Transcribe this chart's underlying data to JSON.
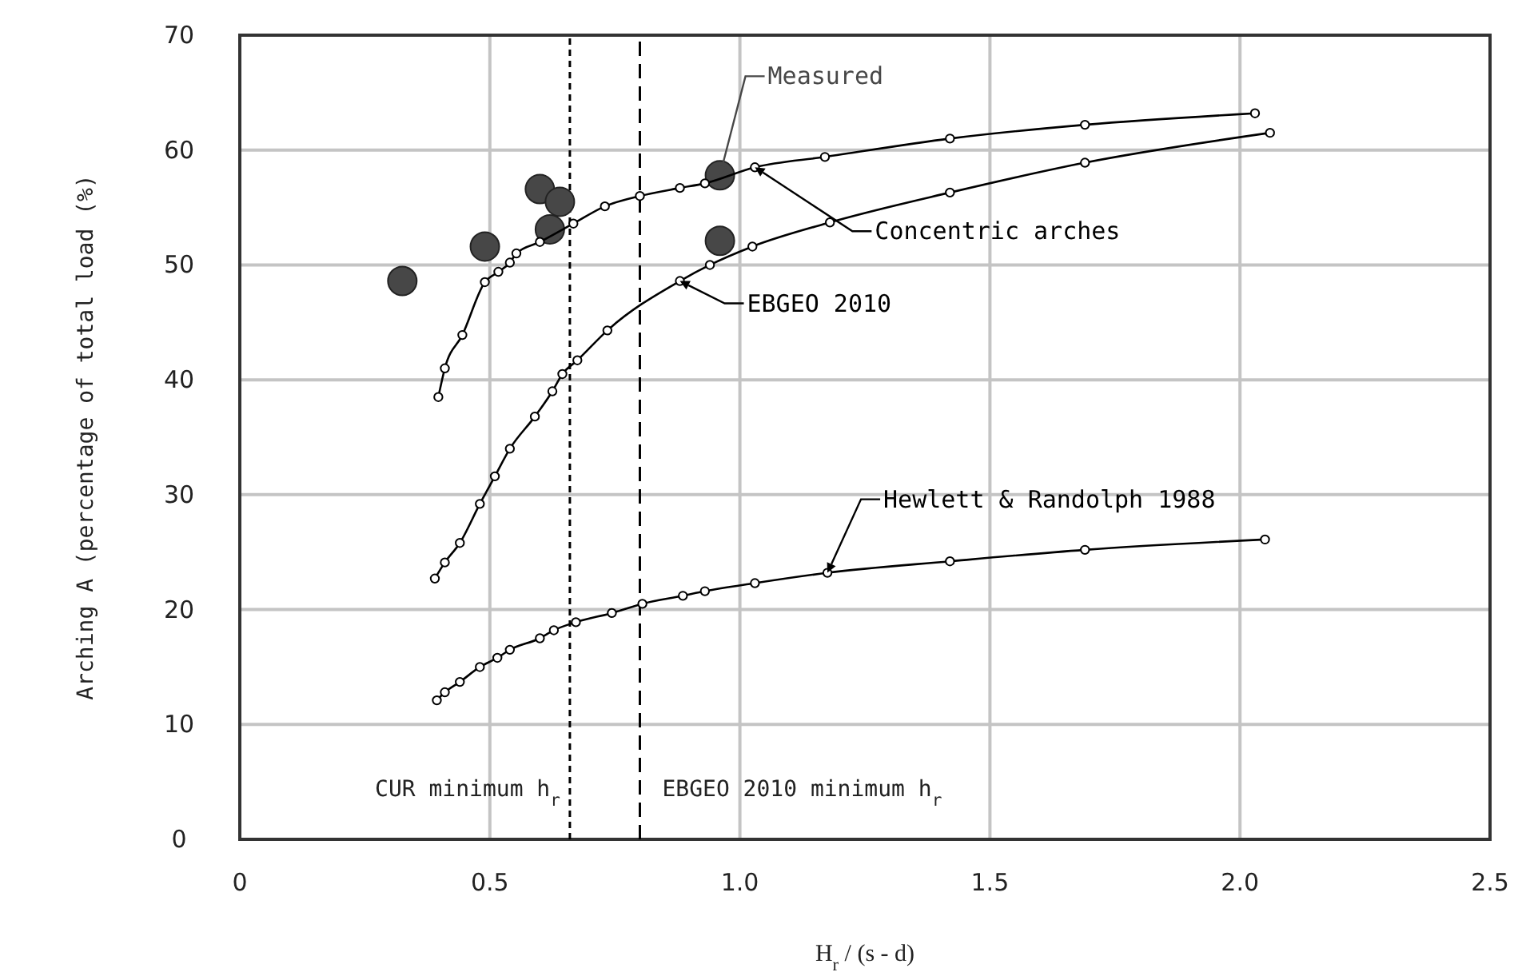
{
  "chart_data": {
    "type": "line",
    "xlabel": "H$_{r}$ / (s - d)",
    "ylabel": "Arching A (percentage of total load (%)",
    "xlim": [
      0,
      2.5
    ],
    "xticks": [
      0,
      0.5,
      {
        "value": 1,
        "label": "1.0"
      },
      1.5,
      {
        "value": 2,
        "label": "2.0"
      },
      2.5
    ],
    "ylim": [
      0,
      70
    ],
    "yticks": [
      0,
      10,
      20,
      30,
      40,
      50,
      60,
      70
    ],
    "grid": true,
    "marker": "circle",
    "series": [
      {
        "name": "Measured",
        "type": "scatter",
        "color": "#474747",
        "x": [
          0.325,
          0.49,
          0.6,
          0.64,
          0.62,
          0.96,
          0.96
        ],
        "values": [
          48.6,
          51.6,
          56.6,
          55.5,
          53.1,
          57.8,
          52.1
        ]
      },
      {
        "name": "Concentric arches",
        "color": "#000000",
        "x": [
          0.397,
          0.41,
          0.445,
          0.49,
          0.517,
          0.54,
          0.553,
          0.6,
          0.667,
          0.73,
          0.8,
          0.88,
          0.93,
          1.03,
          1.17,
          1.42,
          1.69,
          2.03
        ],
        "values": [
          38.5,
          41,
          43.9,
          48.5,
          49.4,
          50.2,
          51,
          52,
          53.6,
          55.1,
          56,
          56.7,
          57.1,
          58.5,
          59.4,
          61,
          62.2,
          63.2
        ]
      },
      {
        "name": "EBGEO 2010",
        "color": "#000000",
        "x": [
          0.39,
          0.41,
          0.44,
          0.48,
          0.51,
          0.54,
          0.59,
          0.625,
          0.645,
          0.675,
          0.735,
          0.88,
          0.94,
          1.025,
          1.18,
          1.42,
          1.69,
          2.06
        ],
        "values": [
          22.7,
          24.1,
          25.8,
          29.2,
          31.6,
          34,
          36.8,
          39,
          40.5,
          41.7,
          44.3,
          48.6,
          50,
          51.6,
          53.7,
          56.3,
          58.9,
          61.5
        ]
      },
      {
        "name": "Hewlett & Randolph 1988",
        "color": "#000000",
        "x": [
          0.394,
          0.41,
          0.44,
          0.48,
          0.515,
          0.54,
          0.6,
          0.628,
          0.672,
          0.744,
          0.805,
          0.886,
          0.93,
          1.03,
          1.175,
          1.42,
          1.69,
          2.05
        ],
        "values": [
          12.1,
          12.8,
          13.7,
          15,
          15.8,
          16.5,
          17.5,
          18.2,
          18.9,
          19.7,
          20.5,
          21.2,
          21.6,
          22.3,
          23.2,
          24.2,
          25.2,
          26.1
        ]
      }
    ],
    "ref_lines": [
      {
        "axis": "x",
        "value": 0.66,
        "label": "CUR minimum h$_{r}$",
        "line_style": "dotted",
        "color": "#000000"
      },
      {
        "axis": "x",
        "value": 0.8,
        "label": "EBGEO 2010 minimum h$_{r}$",
        "line_style": "dashed",
        "color": "#000000"
      }
    ]
  }
}
